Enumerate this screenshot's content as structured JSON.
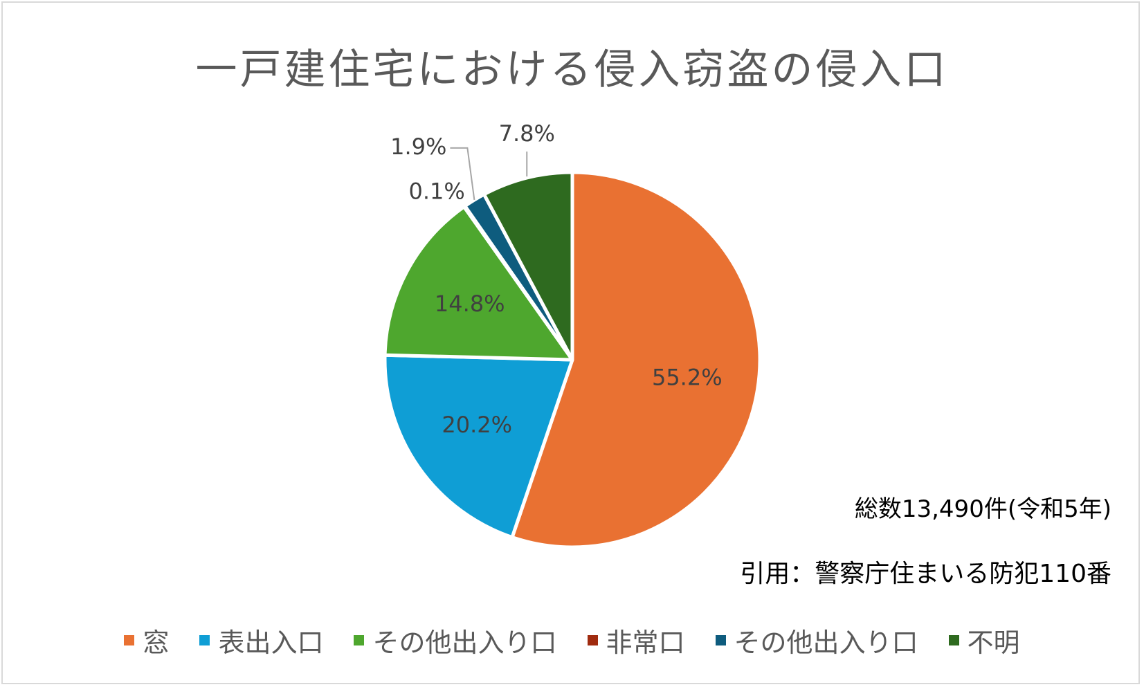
{
  "chart_data": {
    "type": "pie",
    "title": "一戸建住宅における侵入窃盗の侵入口",
    "unit": "%",
    "slices": [
      {
        "name": "窓",
        "value": 55.2,
        "label": "55.2%",
        "color": "#E97132"
      },
      {
        "name": "表出入口",
        "value": 20.2,
        "label": "20.2%",
        "color": "#0F9ED5"
      },
      {
        "name": "その他出入り口",
        "value": 14.8,
        "label": "14.8%",
        "color": "#4EA72E"
      },
      {
        "name": "非常口",
        "value": 0.1,
        "label": "0.1%",
        "color": "#A02B0F"
      },
      {
        "name": "その他出入り口",
        "value": 1.9,
        "label": "1.9%",
        "color": "#0E5C7E"
      },
      {
        "name": "不明",
        "value": 7.8,
        "label": "7.8%",
        "color": "#2E6A1F"
      }
    ],
    "legend_position": "bottom",
    "notes": [
      "総数13,490件(令和5年)",
      "引用：警察庁住まいる防犯110番"
    ]
  }
}
